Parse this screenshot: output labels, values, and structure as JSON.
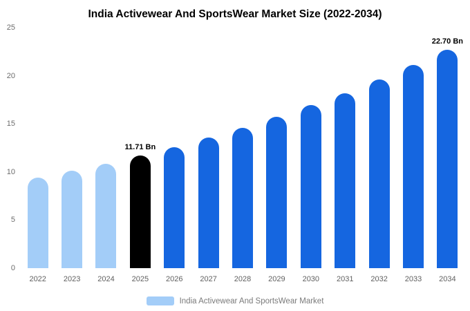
{
  "title": "India Activewear And SportsWear Market Size (2022-2034)",
  "legend": {
    "label": "India Activewear And SportsWear Market",
    "swatch_color": "#a3cdf8"
  },
  "colors": {
    "light_blue": "#a3cdf8",
    "highlight_black": "#000000",
    "blue": "#1566e0",
    "axis_text": "#6b6b6b"
  },
  "chart_data": {
    "type": "bar",
    "title": "India Activewear And SportsWear Market Size (2022-2034)",
    "categories": [
      "2022",
      "2023",
      "2024",
      "2025",
      "2026",
      "2027",
      "2028",
      "2029",
      "2030",
      "2031",
      "2032",
      "2033",
      "2034"
    ],
    "values": [
      9.39,
      10.11,
      10.88,
      11.71,
      12.6,
      13.57,
      14.6,
      15.72,
      16.92,
      18.21,
      19.6,
      21.09,
      22.7
    ],
    "bar_colors": [
      "#a3cdf8",
      "#a3cdf8",
      "#a3cdf8",
      "#000000",
      "#1566e0",
      "#1566e0",
      "#1566e0",
      "#1566e0",
      "#1566e0",
      "#1566e0",
      "#1566e0",
      "#1566e0",
      "#1566e0"
    ],
    "annotations": [
      {
        "category": "2025",
        "text": "11.71 Bn"
      },
      {
        "category": "2034",
        "text": "22.70 Bn"
      }
    ],
    "xlabel": "",
    "ylabel": "",
    "ylim": [
      0,
      25
    ],
    "yticks": [
      0,
      5,
      10,
      15,
      20,
      25
    ],
    "grid": false,
    "legend_position": "bottom",
    "legend_entries": [
      "India Activewear And SportsWear Market"
    ]
  }
}
